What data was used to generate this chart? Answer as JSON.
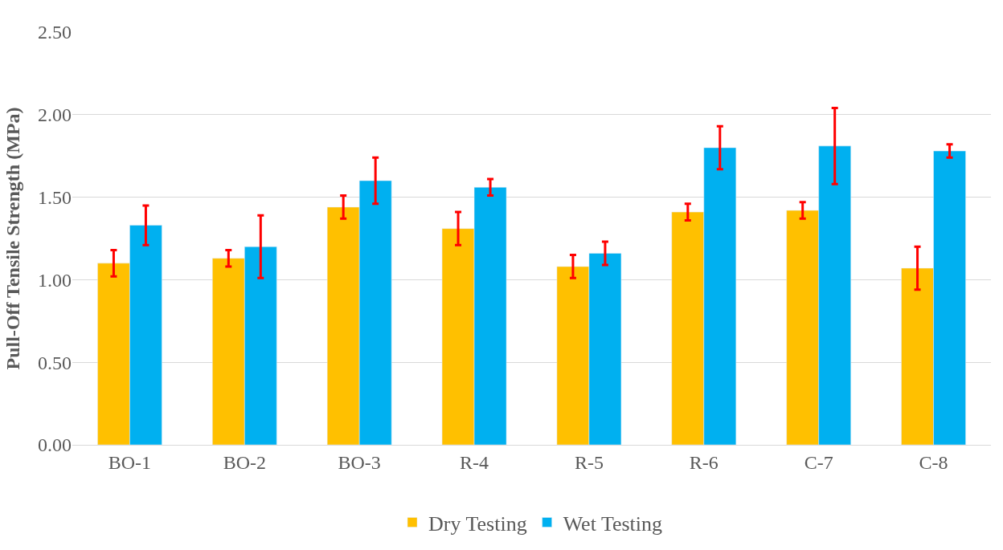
{
  "chart_data": {
    "type": "bar",
    "ylabel": "Pull-Off Tensile Strength (MPa)",
    "categories": [
      "BO-1",
      "BO-2",
      "BO-3",
      "R-4",
      "R-5",
      "R-6",
      "C-7",
      "C-8"
    ],
    "series": [
      {
        "name": "Dry Testing",
        "color": "#ffc000",
        "values": [
          1.1,
          1.13,
          1.44,
          1.31,
          1.08,
          1.41,
          1.42,
          1.07
        ],
        "errors": [
          0.08,
          0.05,
          0.07,
          0.1,
          0.07,
          0.05,
          0.05,
          0.13
        ]
      },
      {
        "name": "Wet Testing",
        "color": "#00b0f0",
        "values": [
          1.33,
          1.2,
          1.6,
          1.56,
          1.16,
          1.8,
          1.81,
          1.78
        ],
        "errors": [
          0.12,
          0.19,
          0.14,
          0.05,
          0.07,
          0.13,
          0.23,
          0.04
        ]
      }
    ],
    "ylim": [
      0,
      2.5
    ],
    "yticks": [
      {
        "value": 0,
        "label": "0.00"
      },
      {
        "value": 0.5,
        "label": "0.50"
      },
      {
        "value": 1,
        "label": "1.00"
      },
      {
        "value": 1.5,
        "label": "1.50"
      },
      {
        "value": 2,
        "label": "2.00"
      },
      {
        "value": 2.5,
        "label": "2.50"
      }
    ],
    "grid": "y",
    "legend": "bottom"
  }
}
